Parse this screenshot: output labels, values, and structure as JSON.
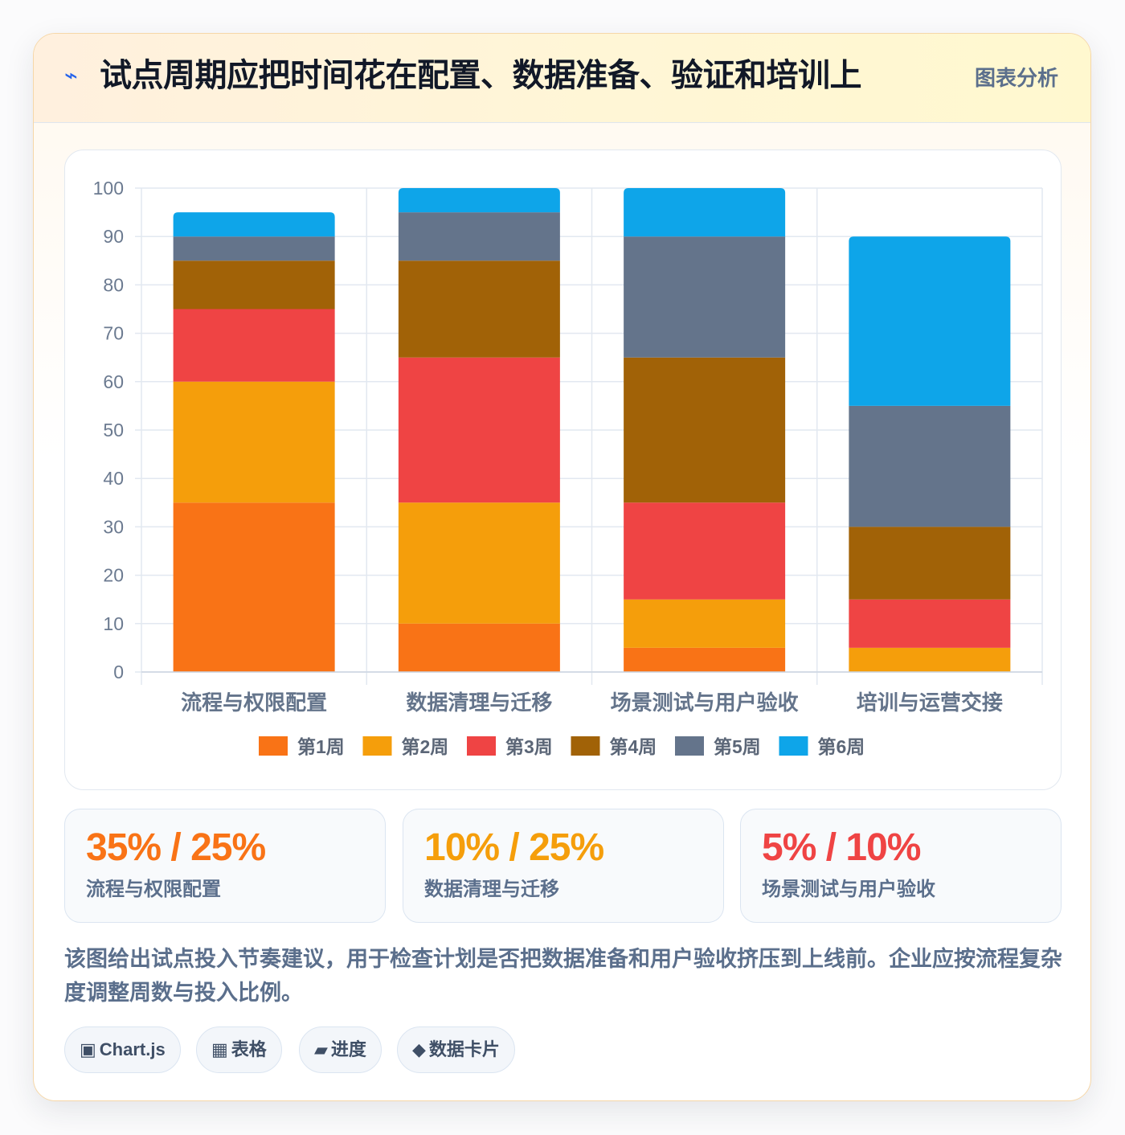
{
  "header": {
    "icon": "bolt-icon",
    "title": "试点周期应把时间花在配置、数据准备、验证和培训上",
    "badge": "图表分析"
  },
  "chart_data": {
    "type": "bar",
    "stacked": true,
    "categories": [
      "流程与权限配置",
      "数据清理与迁移",
      "场景测试与用户验收",
      "培训与运营交接"
    ],
    "series": [
      {
        "name": "第1周",
        "color": "#f97316",
        "values": [
          35,
          10,
          5,
          0
        ]
      },
      {
        "name": "第2周",
        "color": "#f59e0b",
        "values": [
          25,
          25,
          10,
          5
        ]
      },
      {
        "name": "第3周",
        "color": "#ef4444",
        "values": [
          15,
          30,
          20,
          10
        ]
      },
      {
        "name": "第4周",
        "color": "#a16207",
        "values": [
          10,
          20,
          30,
          15
        ]
      },
      {
        "name": "第5周",
        "color": "#64748b",
        "values": [
          5,
          10,
          25,
          25
        ]
      },
      {
        "name": "第6周",
        "color": "#0ea5e9",
        "values": [
          5,
          5,
          10,
          35
        ]
      }
    ],
    "ylim": [
      0,
      100
    ],
    "yticks": [
      0,
      10,
      20,
      30,
      40,
      50,
      60,
      70,
      80,
      90,
      100
    ],
    "grid": true,
    "legend": "bottom"
  },
  "stats": [
    {
      "value": "35% / 25%",
      "label": "流程与权限配置",
      "color": "#f97316"
    },
    {
      "value": "10% / 25%",
      "label": "数据清理与迁移",
      "color": "#f59e0b"
    },
    {
      "value": "5% / 10%",
      "label": "场景测试与用户验收",
      "color": "#ef4444"
    }
  ],
  "description": "该图给出试点投入节奏建议，用于检查计划是否把数据准备和用户验收挤压到上线前。企业应按流程复杂度调整周数与投入比例。",
  "tags": [
    {
      "icon": "chart-square-icon",
      "glyph": "▣",
      "label": "Chart.js"
    },
    {
      "icon": "table-grid-icon",
      "glyph": "▦",
      "label": "表格"
    },
    {
      "icon": "progress-icon",
      "glyph": "▰",
      "label": "进度"
    },
    {
      "icon": "diamond-icon",
      "glyph": "◆",
      "label": "数据卡片"
    }
  ]
}
